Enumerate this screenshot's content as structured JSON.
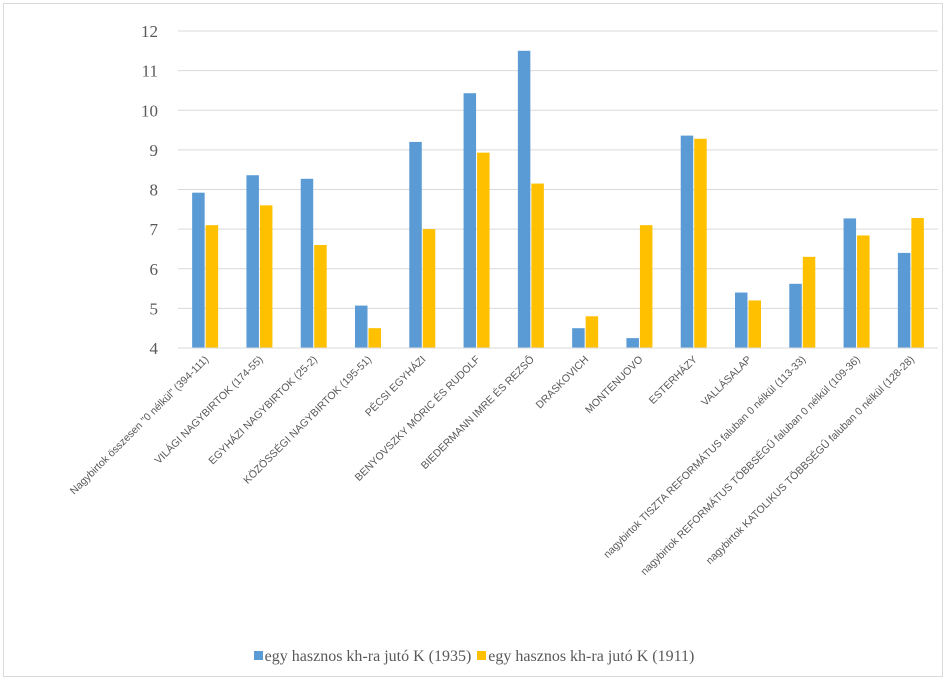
{
  "chart_data": {
    "type": "bar",
    "categories": [
      "Nagybirtok összesen \"0 nélkül\" (394-111)",
      "VILÁGI NAGYBIRTOK (174-55)",
      "EGYHÁZI NAGYBIRTOK (25-2)",
      "KÖZÖSSÉGI NAGYBIRTOK (195-51)",
      "PÉCSI EGYHÁZI",
      "BENYOVSZKY MÓRIC ÉS RUDOLF",
      "BIEDERMANN IMRE ÉS REZSŐ",
      "DRASKOVICH",
      "MONTENUOVO",
      "ESTERHÁZY",
      "VALLÁSALAP",
      "nagybirtok TISZTA REFORMÁTUS faluban  0 nélkül (113-33)",
      "nagybirtok REFORMÁTUS TÖBBSÉGŰ faluban 0 nélkül (109-36)",
      "nagybirtok KATOLIKUS TÖBBSÉGŰ faluban 0 nélkül (128-28)"
    ],
    "series": [
      {
        "name": "egy hasznos kh-ra jutó K (1935)",
        "color": "#5b9bd5",
        "values": [
          7.92,
          8.36,
          8.27,
          5.07,
          9.2,
          10.43,
          11.5,
          4.5,
          4.25,
          9.36,
          5.4,
          5.62,
          7.27,
          6.4
        ]
      },
      {
        "name": "egy hasznos kh-ra jutó K (1911)",
        "color": "#ffc000",
        "values": [
          7.1,
          7.6,
          6.6,
          4.5,
          7.0,
          8.93,
          8.15,
          4.8,
          7.1,
          9.28,
          5.2,
          6.3,
          6.84,
          7.28
        ]
      }
    ],
    "ylim": [
      4,
      12
    ],
    "yticks": [
      4,
      5,
      6,
      7,
      8,
      9,
      10,
      11,
      12
    ],
    "grid": true,
    "legend": "bottom",
    "title": "",
    "xlabel": "",
    "ylabel": ""
  }
}
